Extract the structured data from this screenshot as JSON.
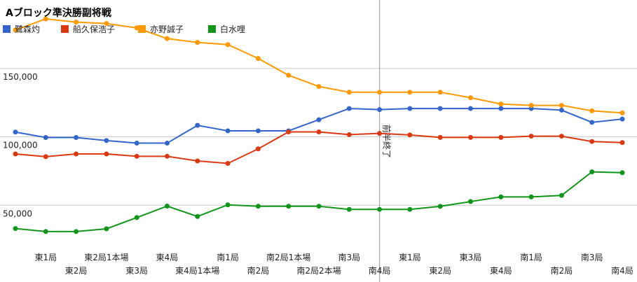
{
  "chart_data": {
    "type": "line",
    "title": "Aブロック準決勝副将戦",
    "categories": [
      "",
      "東1局",
      "東2局",
      "東2局1本場",
      "東3局",
      "東4局",
      "東4局1本場",
      "南1局",
      "南2局",
      "南2局1本場",
      "南2局2本場",
      "南3局",
      "南4局",
      "東1局",
      "東2局",
      "東3局",
      "東4局",
      "南1局",
      "南2局",
      "南3局",
      "南4局"
    ],
    "series": [
      {
        "name": "鷺森灼",
        "color": "#3366cc",
        "values": [
          103500,
          99500,
          99500,
          97300,
          95400,
          95400,
          108400,
          104400,
          104400,
          104400,
          112500,
          120700,
          119900,
          120700,
          120700,
          120700,
          120700,
          120700,
          119500,
          110600,
          113000
        ]
      },
      {
        "name": "船久保浩子",
        "color": "#dc3912",
        "values": [
          87500,
          85500,
          87500,
          87500,
          85800,
          85800,
          82400,
          80600,
          91200,
          103600,
          103600,
          101600,
          102500,
          101400,
          99600,
          99600,
          99600,
          100500,
          100500,
          96600,
          95800
        ]
      },
      {
        "name": "亦野誠子",
        "color": "#ff9900",
        "values": [
          178000,
          186200,
          183800,
          182800,
          179600,
          171800,
          169000,
          167400,
          157300,
          145000,
          136800,
          132600,
          132600,
          132600,
          132600,
          128600,
          124000,
          123000,
          123000,
          119000,
          117500
        ]
      },
      {
        "name": "白水哩",
        "color": "#109618",
        "values": [
          33000,
          30800,
          30800,
          32800,
          41000,
          49400,
          41800,
          50300,
          49300,
          49300,
          49300,
          47000,
          47000,
          47000,
          49200,
          52700,
          56100,
          56100,
          57200,
          74400,
          73800
        ]
      }
    ],
    "y_ticks": [
      "50,000",
      "100,000",
      "150,000"
    ],
    "y_tick_values": [
      50000,
      100000,
      150000
    ],
    "ylim": [
      20000,
      200000
    ],
    "grid": true,
    "legend": "top-left",
    "annotation": {
      "text": "前半終了",
      "at_index": 12
    }
  }
}
